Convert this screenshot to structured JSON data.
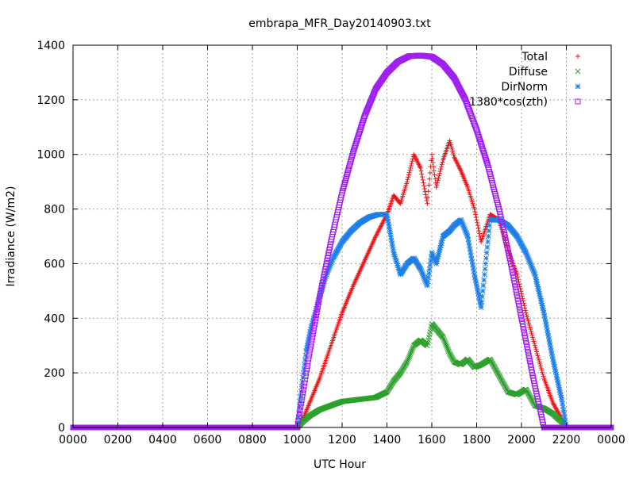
{
  "chart_data": {
    "type": "scatter",
    "title": "embrapa_MFR_Day20140903.txt",
    "xlabel": "UTC Hour",
    "ylabel": "Irradiance (W/m2)",
    "xlim": [
      0,
      24
    ],
    "ylim": [
      0,
      1400
    ],
    "grid": true,
    "legend_position": "top-right",
    "x_tick_labels": [
      "0000",
      "0200",
      "0400",
      "0600",
      "0800",
      "1000",
      "1200",
      "1400",
      "1600",
      "1800",
      "2000",
      "2200",
      "0000"
    ],
    "y_tick_labels": [
      "0",
      "200",
      "400",
      "600",
      "800",
      "1000",
      "1200",
      "1400"
    ],
    "series": [
      {
        "name": "Total",
        "marker": "plus",
        "color": "#e41a1c",
        "x": [
          0,
          4,
          8,
          10.0,
          10.3,
          10.6,
          11.0,
          11.5,
          12.0,
          12.5,
          13.0,
          13.5,
          14.0,
          14.3,
          14.6,
          14.9,
          15.2,
          15.5,
          15.8,
          16.0,
          16.2,
          16.5,
          16.8,
          17.0,
          17.3,
          17.6,
          17.9,
          18.2,
          18.6,
          19.0,
          19.4,
          19.8,
          20.2,
          20.6,
          21.0,
          21.4,
          21.8,
          22.0,
          23,
          24
        ],
        "y": [
          0,
          0,
          0,
          0,
          40,
          100,
          180,
          300,
          420,
          520,
          610,
          700,
          780,
          850,
          820,
          900,
          1000,
          950,
          820,
          1000,
          880,
          980,
          1050,
          990,
          940,
          880,
          800,
          680,
          780,
          760,
          650,
          560,
          420,
          300,
          180,
          90,
          30,
          0,
          0,
          0
        ]
      },
      {
        "name": "Diffuse",
        "marker": "cross",
        "color": "#2ca02c",
        "x": [
          0,
          4,
          8,
          10.0,
          10.3,
          10.6,
          11.0,
          11.5,
          12.0,
          12.5,
          13.0,
          13.5,
          14.0,
          14.3,
          14.6,
          14.9,
          15.2,
          15.5,
          15.8,
          16.0,
          16.2,
          16.5,
          16.8,
          17.0,
          17.3,
          17.6,
          17.9,
          18.2,
          18.6,
          19.0,
          19.4,
          19.8,
          20.2,
          20.6,
          21.0,
          21.4,
          21.8,
          22.0,
          23,
          24
        ],
        "y": [
          0,
          0,
          0,
          0,
          25,
          45,
          65,
          80,
          95,
          100,
          105,
          110,
          130,
          170,
          200,
          240,
          300,
          320,
          300,
          380,
          360,
          330,
          270,
          240,
          230,
          250,
          220,
          230,
          250,
          190,
          130,
          120,
          140,
          80,
          70,
          50,
          20,
          0,
          0,
          0
        ]
      },
      {
        "name": "DirNorm",
        "marker": "star",
        "color": "#1e7fe6",
        "x": [
          0,
          4,
          8,
          10.0,
          10.2,
          10.4,
          10.6,
          10.8,
          11.0,
          11.3,
          11.6,
          12.0,
          12.4,
          12.8,
          13.2,
          13.6,
          14.0,
          14.3,
          14.6,
          14.9,
          15.2,
          15.5,
          15.8,
          16.0,
          16.2,
          16.5,
          16.8,
          17.0,
          17.3,
          17.6,
          17.9,
          18.2,
          18.6,
          19.0,
          19.4,
          19.8,
          20.2,
          20.6,
          21.0,
          21.4,
          21.8,
          22.0,
          23,
          24
        ],
        "y": [
          0,
          0,
          0,
          0,
          150,
          280,
          360,
          420,
          480,
          560,
          620,
          680,
          720,
          750,
          770,
          780,
          780,
          640,
          560,
          600,
          620,
          580,
          520,
          640,
          600,
          700,
          720,
          740,
          760,
          700,
          560,
          440,
          760,
          760,
          740,
          700,
          640,
          560,
          420,
          250,
          100,
          0,
          0,
          0
        ]
      },
      {
        "name": "1380*cos(zth)",
        "marker": "square",
        "color": "#a020f0",
        "x": [
          0,
          4,
          8,
          10.0,
          10.5,
          11.0,
          11.5,
          12.0,
          12.5,
          13.0,
          13.5,
          14.0,
          14.5,
          15.0,
          15.5,
          16.0,
          16.5,
          17.0,
          17.5,
          18.0,
          18.5,
          19.0,
          19.5,
          20.0,
          20.5,
          21.0,
          21.5,
          22.0,
          23,
          24
        ],
        "y": [
          0,
          0,
          0,
          0,
          250,
          480,
          680,
          860,
          1010,
          1140,
          1240,
          1300,
          1340,
          1360,
          1362,
          1358,
          1330,
          1280,
          1200,
          1090,
          960,
          800,
          610,
          400,
          190,
          0,
          0,
          0,
          0,
          0
        ]
      }
    ]
  }
}
